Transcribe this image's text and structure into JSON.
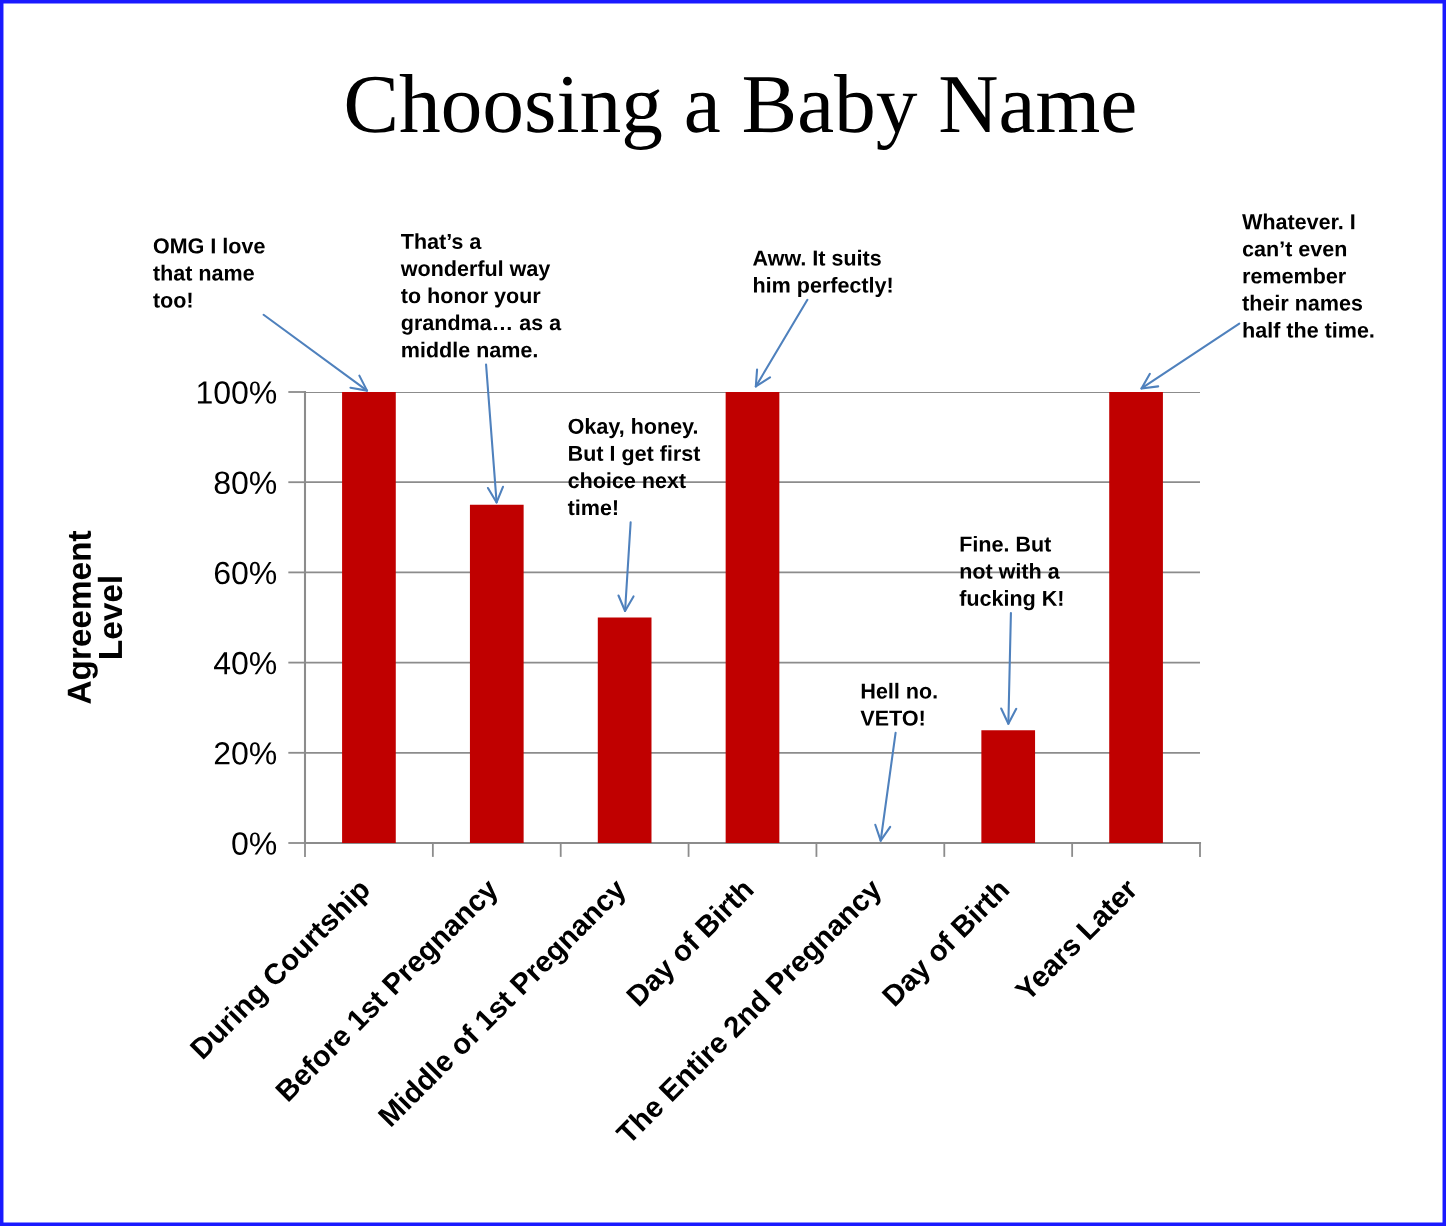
{
  "chart_data": {
    "type": "bar",
    "title": "Choosing a Baby Name",
    "ylabel": "Agreement\nLevel",
    "categories": [
      "During Courtship",
      "Before 1st Pregnancy",
      "Middle of 1st Pregnancy",
      "Day of Birth",
      "The Entire 2nd Pregnancy",
      "Day of Birth",
      "Years Later"
    ],
    "values": [
      100,
      75,
      50,
      100,
      0,
      25,
      100
    ],
    "color": "#c00000",
    "ylim": [
      0,
      100
    ],
    "yticks": [
      {
        "value": 0,
        "label": "0%"
      },
      {
        "value": 20,
        "label": "20%"
      },
      {
        "value": 40,
        "label": "40%"
      },
      {
        "value": 60,
        "label": "60%"
      },
      {
        "value": 80,
        "label": "80%"
      },
      {
        "value": 100,
        "label": "100%"
      }
    ],
    "grid": "y",
    "annotations": [
      {
        "text": "OMG I love\nthat name\ntoo!",
        "x": "During Courtship",
        "y": 100
      },
      {
        "text": "That’s a\nwonderful way\nto honor your\ngrandma… as a\nmiddle name.",
        "x": "Before 1st Pregnancy",
        "y": 75
      },
      "Okay, honey.\nBut I get first\nchoice next\ntime!",
      "Aww. It suits\nhim perfectly!",
      {
        "text": "Hell no.\nVETO!",
        "x": "The Entire 2nd Pregnancy",
        "y": 0
      },
      "Fine. But\nnot with a\nfucking K!",
      "Whatever. I\ncan’t even\nremember\ntheir names\nhalf the time."
    ]
  }
}
